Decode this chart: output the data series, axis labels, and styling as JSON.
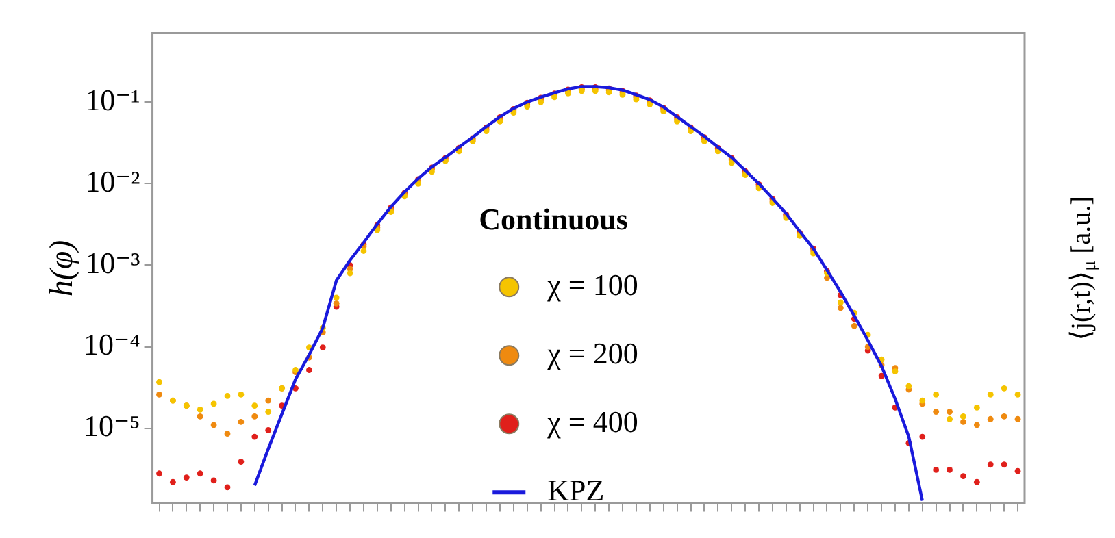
{
  "chart_data": {
    "type": "scatter",
    "ylabel": "h(φ)",
    "y2label": "⟨j(r,t)⟩$_{μ}$ [a.u.]",
    "legend_title": "Continuous",
    "legend": "center",
    "marker": "circle",
    "log": "y",
    "grid": false,
    "tick_labels": "y",
    "ylim": [
      1.2e-06,
      0.7
    ],
    "yticks": [
      {
        "value": 1e-05,
        "label": "10⁻⁵"
      },
      {
        "value": 0.0001,
        "label": "10⁻⁴"
      },
      {
        "value": 0.001,
        "label": "10⁻³"
      },
      {
        "value": 0.01,
        "label": "10⁻²"
      },
      {
        "value": 0.1,
        "label": "10⁻¹"
      }
    ],
    "categories": [
      null,
      null,
      null,
      null,
      null,
      null,
      null,
      null,
      null,
      null,
      null,
      null,
      null,
      null,
      null,
      null,
      null,
      null,
      null,
      null,
      null,
      null,
      null,
      null,
      null,
      null,
      null,
      null,
      null,
      null,
      null,
      null,
      null,
      null,
      null,
      null,
      null,
      null,
      null,
      null,
      null,
      null,
      null,
      null,
      null,
      null,
      null,
      null,
      null,
      null,
      null,
      null,
      null,
      null,
      null,
      null,
      null,
      null,
      null,
      null,
      null,
      null,
      null,
      null
    ],
    "series": [
      {
        "name": "χ = 100",
        "color": "#f5c400",
        "values": [
          3.7e-05,
          2.2e-05,
          1.9e-05,
          1.7e-05,
          2e-05,
          2.5e-05,
          2.6e-05,
          1.9e-05,
          1.6e-05,
          3.1e-05,
          5.2e-05,
          9.8e-05,
          0.00017,
          0.0004,
          0.0008,
          0.0015,
          0.0027,
          0.0045,
          0.007,
          0.01,
          0.014,
          0.019,
          0.025,
          0.033,
          0.044,
          0.058,
          0.074,
          0.088,
          0.1,
          0.115,
          0.128,
          0.137,
          0.137,
          0.132,
          0.123,
          0.108,
          0.094,
          0.077,
          0.058,
          0.044,
          0.033,
          0.025,
          0.018,
          0.0128,
          0.0088,
          0.0058,
          0.0038,
          0.0023,
          0.0014,
          0.0008,
          0.00035,
          0.00026,
          0.00014,
          7e-05,
          5e-05,
          3.3e-05,
          2.2e-05,
          2.6e-05,
          1.3e-05,
          1.4e-05,
          1.8e-05,
          2.6e-05,
          3.1e-05,
          2.6e-05
        ]
      },
      {
        "name": "χ = 200",
        "color": "#ef8a10",
        "values": [
          2.6e-05,
          2.2e-05,
          1.9e-05,
          1.4e-05,
          1.1e-05,
          8.6e-06,
          1.2e-05,
          1.4e-05,
          2.2e-05,
          3.1e-05,
          4.9e-05,
          7.4e-05,
          0.00015,
          0.00034,
          0.0009,
          0.0017,
          0.0029,
          0.0048,
          0.0074,
          0.0107,
          0.015,
          0.0195,
          0.026,
          0.034,
          0.046,
          0.061,
          0.078,
          0.093,
          0.107,
          0.121,
          0.135,
          0.144,
          0.144,
          0.14,
          0.13,
          0.114,
          0.1,
          0.081,
          0.061,
          0.046,
          0.035,
          0.026,
          0.0195,
          0.0135,
          0.0093,
          0.0061,
          0.004,
          0.0024,
          0.0015,
          0.0007,
          0.0003,
          0.00018,
          0.0001,
          6e-05,
          5.5e-05,
          3e-05,
          2e-05,
          1.6e-05,
          1.6e-05,
          1.2e-05,
          1.1e-05,
          1.3e-05,
          1.4e-05,
          1.3e-05
        ]
      },
      {
        "name": "χ = 400",
        "color": "#e0201b",
        "values": [
          2.8e-06,
          2.2e-06,
          2.5e-06,
          2.8e-06,
          2.3e-06,
          1.9e-06,
          3.9e-06,
          7.9e-06,
          9.5e-06,
          1.9e-05,
          3.1e-05,
          5.2e-05,
          9.8e-05,
          0.00031,
          0.001,
          0.0018,
          0.0031,
          0.0051,
          0.0077,
          0.0113,
          0.0157,
          0.0206,
          0.0274,
          0.036,
          0.049,
          0.065,
          0.082,
          0.098,
          0.113,
          0.127,
          0.142,
          0.152,
          0.152,
          0.147,
          0.137,
          0.12,
          0.105,
          0.085,
          0.065,
          0.049,
          0.037,
          0.0274,
          0.0206,
          0.0142,
          0.0098,
          0.0065,
          0.0042,
          0.0025,
          0.0016,
          0.00085,
          0.00043,
          0.00022,
          9e-05,
          4.4e-05,
          1.8e-05,
          6.6e-06,
          7.9e-06,
          3.1e-06,
          3.1e-06,
          2.6e-06,
          2.2e-06,
          3.6e-06,
          3.6e-06,
          3e-06
        ]
      },
      {
        "name": "KPZ",
        "type": "line",
        "marker": "none",
        "color": "#1a1adc",
        "values": [
          null,
          null,
          null,
          null,
          null,
          null,
          null,
          2e-06,
          5.6e-06,
          1.5e-05,
          4e-05,
          8e-05,
          0.00017,
          0.00065,
          0.00115,
          0.0019,
          0.0032,
          0.0052,
          0.0079,
          0.0115,
          0.016,
          0.021,
          0.028,
          0.037,
          0.05,
          0.066,
          0.084,
          0.1,
          0.115,
          0.13,
          0.145,
          0.155,
          0.155,
          0.15,
          0.14,
          0.123,
          0.107,
          0.087,
          0.066,
          0.05,
          0.038,
          0.028,
          0.021,
          0.0145,
          0.01,
          0.0066,
          0.0043,
          0.0026,
          0.0016,
          0.00087,
          0.00047,
          0.00024,
          0.00012,
          5.8e-05,
          2.3e-05,
          7.9e-06,
          1.3e-06,
          null,
          null,
          null,
          null,
          null,
          null,
          null
        ]
      }
    ]
  }
}
